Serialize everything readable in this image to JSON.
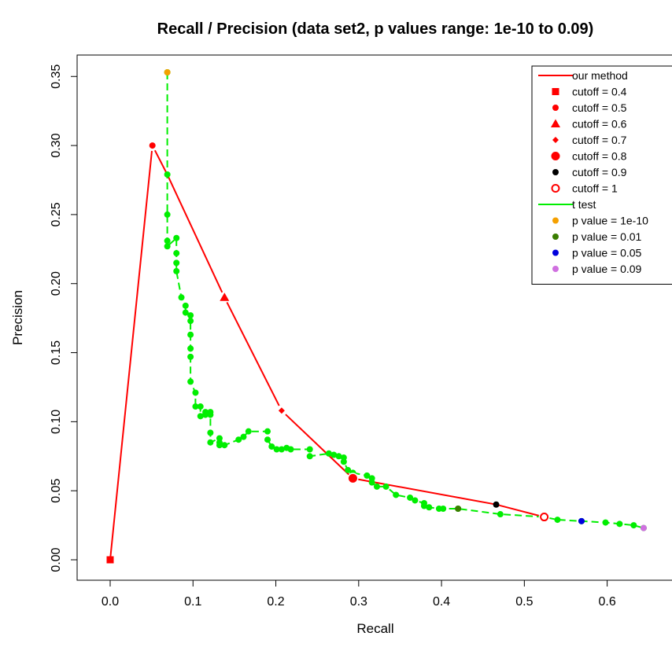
{
  "chart_data": {
    "type": "line",
    "title": "Recall / Precision (data set2, p values range: 1e-10 to 0.09)",
    "xlabel": "Recall",
    "ylabel": "Precision",
    "xlim": [
      0.0,
      0.645
    ],
    "ylim": [
      0.0,
      0.353
    ],
    "xticks": [
      "0.0",
      "0.1",
      "0.2",
      "0.3",
      "0.4",
      "0.5",
      "0.6"
    ],
    "xtick_values": [
      0.0,
      0.1,
      0.2,
      0.3,
      0.4,
      0.5,
      0.6
    ],
    "yticks": [
      "0.00",
      "0.05",
      "0.10",
      "0.15",
      "0.20",
      "0.25",
      "0.30",
      "0.35"
    ],
    "ytick_values": [
      0.0,
      0.05,
      0.1,
      0.15,
      0.2,
      0.25,
      0.3,
      0.35
    ],
    "grid": false,
    "legend_position": "top-right",
    "series": [
      {
        "name": "our method",
        "color": "#ff0000",
        "line": "solid",
        "points": [
          [
            0.0,
            0.0
          ],
          [
            0.051,
            0.3
          ],
          [
            0.069,
            0.279
          ],
          [
            0.138,
            0.19
          ],
          [
            0.207,
            0.108
          ],
          [
            0.293,
            0.059
          ],
          [
            0.466,
            0.04
          ],
          [
            0.524,
            0.031
          ]
        ]
      },
      {
        "name": "t test",
        "color": "#00ee00",
        "line": "dashed",
        "points": [
          [
            0.069,
            0.353
          ],
          [
            0.069,
            0.279
          ],
          [
            0.069,
            0.25
          ],
          [
            0.069,
            0.231
          ],
          [
            0.069,
            0.227
          ],
          [
            0.08,
            0.233
          ],
          [
            0.08,
            0.222
          ],
          [
            0.08,
            0.215
          ],
          [
            0.08,
            0.209
          ],
          [
            0.086,
            0.19
          ],
          [
            0.091,
            0.184
          ],
          [
            0.091,
            0.179
          ],
          [
            0.097,
            0.177
          ],
          [
            0.097,
            0.173
          ],
          [
            0.097,
            0.163
          ],
          [
            0.097,
            0.153
          ],
          [
            0.097,
            0.147
          ],
          [
            0.097,
            0.129
          ],
          [
            0.103,
            0.121
          ],
          [
            0.103,
            0.111
          ],
          [
            0.109,
            0.111
          ],
          [
            0.109,
            0.104
          ],
          [
            0.115,
            0.107
          ],
          [
            0.115,
            0.105
          ],
          [
            0.121,
            0.107
          ],
          [
            0.121,
            0.105
          ],
          [
            0.121,
            0.092
          ],
          [
            0.121,
            0.085
          ],
          [
            0.132,
            0.088
          ],
          [
            0.132,
            0.085
          ],
          [
            0.132,
            0.083
          ],
          [
            0.138,
            0.083
          ],
          [
            0.155,
            0.087
          ],
          [
            0.161,
            0.089
          ],
          [
            0.167,
            0.093
          ],
          [
            0.19,
            0.093
          ],
          [
            0.19,
            0.087
          ],
          [
            0.195,
            0.082
          ],
          [
            0.201,
            0.08
          ],
          [
            0.207,
            0.08
          ],
          [
            0.213,
            0.081
          ],
          [
            0.218,
            0.08
          ],
          [
            0.241,
            0.08
          ],
          [
            0.241,
            0.075
          ],
          [
            0.264,
            0.077
          ],
          [
            0.27,
            0.076
          ],
          [
            0.276,
            0.075
          ],
          [
            0.282,
            0.074
          ],
          [
            0.282,
            0.071
          ],
          [
            0.287,
            0.065
          ],
          [
            0.293,
            0.063
          ],
          [
            0.31,
            0.061
          ],
          [
            0.316,
            0.059
          ],
          [
            0.316,
            0.056
          ],
          [
            0.322,
            0.053
          ],
          [
            0.333,
            0.053
          ],
          [
            0.345,
            0.047
          ],
          [
            0.362,
            0.045
          ],
          [
            0.368,
            0.043
          ],
          [
            0.379,
            0.041
          ],
          [
            0.379,
            0.039
          ],
          [
            0.385,
            0.038
          ],
          [
            0.397,
            0.037
          ],
          [
            0.402,
            0.037
          ],
          [
            0.42,
            0.037
          ],
          [
            0.471,
            0.033
          ],
          [
            0.524,
            0.031
          ],
          [
            0.54,
            0.029
          ],
          [
            0.569,
            0.028
          ],
          [
            0.598,
            0.027
          ],
          [
            0.615,
            0.026
          ],
          [
            0.632,
            0.025
          ],
          [
            0.644,
            0.023
          ]
        ]
      }
    ],
    "markers": [
      {
        "label": "cutoff = 0.4",
        "shape": "square",
        "color": "#ff0000",
        "x": 0.0,
        "y": 0.0
      },
      {
        "label": "cutoff = 0.5",
        "shape": "circle-small",
        "color": "#ff0000",
        "x": 0.051,
        "y": 0.3
      },
      {
        "label": "cutoff = 0.6",
        "shape": "triangle",
        "color": "#ff0000",
        "x": 0.138,
        "y": 0.19
      },
      {
        "label": "cutoff = 0.7",
        "shape": "diamond",
        "color": "#ff0000",
        "x": 0.207,
        "y": 0.108
      },
      {
        "label": "cutoff = 0.8",
        "shape": "circle-large",
        "color": "#ff0000",
        "x": 0.293,
        "y": 0.059
      },
      {
        "label": "cutoff = 0.9",
        "shape": "circle-small",
        "color": "#000000",
        "x": 0.466,
        "y": 0.04
      },
      {
        "label": "cutoff = 1",
        "shape": "circle-open",
        "color": "#ff0000",
        "x": 0.524,
        "y": 0.031
      },
      {
        "label": "p value = 1e-10",
        "shape": "circle-small",
        "color": "#f5a000",
        "x": 0.069,
        "y": 0.353
      },
      {
        "label": "p value = 0.01",
        "shape": "circle-small",
        "color": "#3a7d00",
        "x": 0.42,
        "y": 0.037
      },
      {
        "label": "p value = 0.05",
        "shape": "circle-small",
        "color": "#0000dd",
        "x": 0.569,
        "y": 0.028
      },
      {
        "label": "p value = 0.09",
        "shape": "circle-small",
        "color": "#d070e0",
        "x": 0.644,
        "y": 0.023
      }
    ],
    "legend": [
      {
        "label": "our method",
        "kind": "line",
        "color": "#ff0000"
      },
      {
        "label": "cutoff = 0.4",
        "kind": "square",
        "color": "#ff0000"
      },
      {
        "label": "cutoff = 0.5",
        "kind": "circle-small",
        "color": "#ff0000"
      },
      {
        "label": "cutoff = 0.6",
        "kind": "triangle",
        "color": "#ff0000"
      },
      {
        "label": "cutoff = 0.7",
        "kind": "diamond",
        "color": "#ff0000"
      },
      {
        "label": "cutoff = 0.8",
        "kind": "circle-large",
        "color": "#ff0000"
      },
      {
        "label": "cutoff = 0.9",
        "kind": "circle-small",
        "color": "#000000"
      },
      {
        "label": "cutoff = 1",
        "kind": "circle-open",
        "color": "#ff0000"
      },
      {
        "label": "t test",
        "kind": "line",
        "color": "#00ee00"
      },
      {
        "label": "p value = 1e-10",
        "kind": "circle-small",
        "color": "#f5a000"
      },
      {
        "label": "p value = 0.01",
        "kind": "circle-small",
        "color": "#3a7d00"
      },
      {
        "label": "p value = 0.05",
        "kind": "circle-small",
        "color": "#0000dd"
      },
      {
        "label": "p value = 0.09",
        "kind": "circle-small",
        "color": "#d070e0"
      }
    ]
  }
}
